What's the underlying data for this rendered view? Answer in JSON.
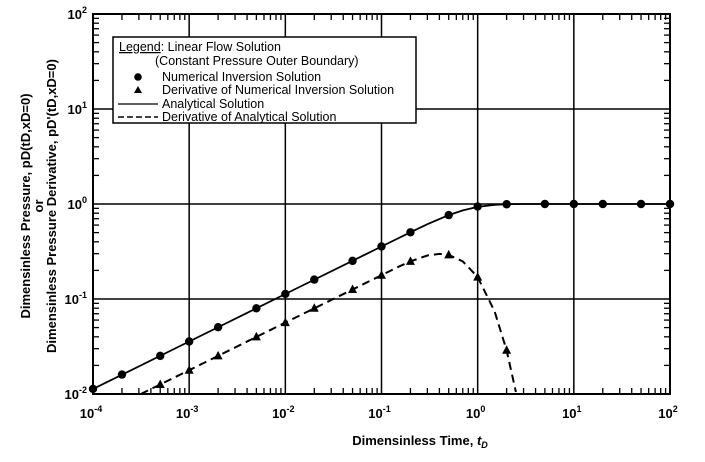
{
  "chart_data": {
    "type": "line",
    "xlabel": "Dimensinless Time, ",
    "xlabel_sym": "t",
    "xlabel_sub": "D",
    "ylabel_line1": "Dimensinless Pressure, pD(tD,xD=0)",
    "ylabel_or": "or",
    "ylabel_line2": "Dimensinless Pressure Derivative, pD'(tD,xD=0)",
    "x_scale": "log",
    "y_scale": "log",
    "xlim": [
      0.0001,
      100
    ],
    "ylim": [
      0.01,
      100
    ],
    "grid": true,
    "x_tick_labels": [
      {
        "base": "10",
        "exp": "-4"
      },
      {
        "base": "10",
        "exp": "-3"
      },
      {
        "base": "10",
        "exp": "-2"
      },
      {
        "base": "10",
        "exp": "-1"
      },
      {
        "base": "10",
        "exp": "0"
      },
      {
        "base": "10",
        "exp": "1"
      },
      {
        "base": "10",
        "exp": "2"
      }
    ],
    "y_tick_labels": [
      {
        "base": "10",
        "exp": "-2"
      },
      {
        "base": "10",
        "exp": "-1"
      },
      {
        "base": "10",
        "exp": "0"
      },
      {
        "base": "10",
        "exp": "1"
      },
      {
        "base": "10",
        "exp": "2"
      }
    ],
    "legend": {
      "placement": "top-left",
      "title_prefix": "Legend",
      "title": ": Linear Flow Solution",
      "subtitle": "(Constant Pressure Outer Boundary)",
      "entries": [
        "Numerical Inversion Solution",
        "Derivative of Numerical Inversion Solution",
        "Analytical Solution",
        "Derivative of Analytical Solution"
      ]
    },
    "series": [
      {
        "name": "Numerical Inversion Solution",
        "marker": "circle",
        "x": [
          0.0001,
          0.0002,
          0.0005,
          0.001,
          0.002,
          0.005,
          0.01,
          0.02,
          0.05,
          0.1,
          0.2,
          0.5,
          1,
          2,
          5,
          10,
          20,
          50,
          100
        ],
        "y": [
          0.0113,
          0.016,
          0.0252,
          0.0357,
          0.0505,
          0.0798,
          0.113,
          0.16,
          0.252,
          0.357,
          0.504,
          0.764,
          0.94,
          0.994,
          1.0,
          1.0,
          1.0,
          1.0,
          1.0
        ]
      },
      {
        "name": "Derivative of Numerical Inversion Solution",
        "marker": "triangle",
        "x": [
          0.0005,
          0.001,
          0.002,
          0.005,
          0.01,
          0.02,
          0.05,
          0.1,
          0.2,
          0.5,
          1,
          2
        ],
        "y": [
          0.0126,
          0.0178,
          0.0252,
          0.0399,
          0.0564,
          0.0798,
          0.126,
          0.178,
          0.249,
          0.291,
          0.17,
          0.0289
        ]
      },
      {
        "name": "Analytical Solution",
        "line": "solid",
        "x": [
          0.0001,
          0.001,
          0.01,
          0.1,
          0.2,
          0.3,
          0.5,
          0.7,
          1,
          1.5,
          2,
          3,
          100
        ],
        "y": [
          0.0113,
          0.0357,
          0.113,
          0.357,
          0.504,
          0.613,
          0.764,
          0.856,
          0.931,
          0.98,
          0.994,
          0.9995,
          1.0
        ]
      },
      {
        "name": "Derivative of Analytical Solution",
        "line": "dashed",
        "x": [
          0.000314,
          0.001,
          0.01,
          0.05,
          0.1,
          0.15,
          0.2,
          0.3,
          0.4,
          0.5,
          0.7,
          1,
          1.5,
          2,
          2.5
        ],
        "y": [
          0.01,
          0.0178,
          0.0564,
          0.126,
          0.178,
          0.218,
          0.249,
          0.287,
          0.298,
          0.291,
          0.249,
          0.17,
          0.074,
          0.0289,
          0.0105
        ]
      }
    ]
  }
}
